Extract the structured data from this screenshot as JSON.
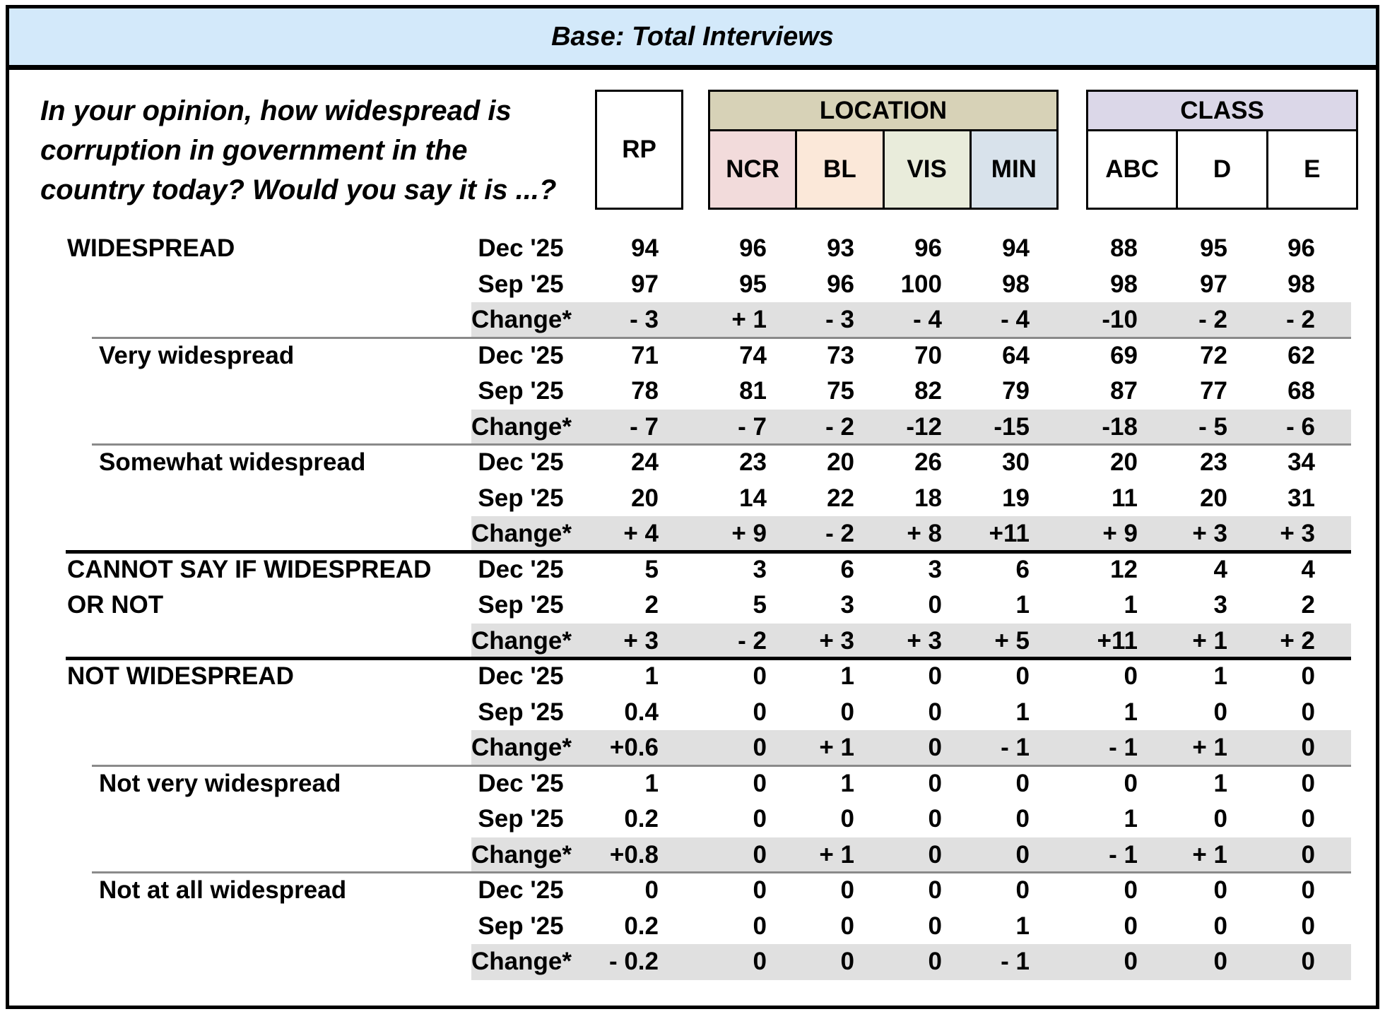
{
  "banner": {
    "title": "Base: Total Interviews"
  },
  "question": {
    "lines": [
      "In your opinion, how widespread is",
      "corruption in government in the",
      "country today? Would you say it is ...?"
    ]
  },
  "header": {
    "rp": "RP",
    "location": {
      "label": "LOCATION",
      "columns": [
        "NCR",
        "BL",
        "VIS",
        "MIN"
      ]
    },
    "class": {
      "label": "CLASS",
      "columns": [
        "ABC",
        "D",
        "E"
      ]
    }
  },
  "colors": {
    "banner_bg": "#d3e9fa",
    "location_bg": "#d7d2b7",
    "ncr_bg": "#f2dbdb",
    "bl_bg": "#fbe8d9",
    "vis_bg": "#e9ecdb",
    "min_bg": "#d8e2eb",
    "class_bg": "#dbd7e8",
    "change_row_bg": "#e0e0e0"
  },
  "table": {
    "column_keys": [
      "RP",
      "NCR",
      "BL",
      "VIS",
      "MIN",
      "ABC",
      "D",
      "E"
    ],
    "rows": [
      {
        "sep": "none",
        "label": "WIDESPREAD",
        "indent": false,
        "period": "Dec '25",
        "shaded": false,
        "values": [
          "94",
          "96",
          "93",
          "96",
          "94",
          "88",
          "95",
          "96"
        ]
      },
      {
        "sep": "none",
        "label": "",
        "indent": false,
        "period": "Sep '25",
        "shaded": false,
        "values": [
          "97",
          "95",
          "96",
          "100",
          "98",
          "98",
          "97",
          "98"
        ]
      },
      {
        "sep": "none",
        "label": "",
        "indent": false,
        "period": "Change*",
        "shaded": true,
        "values": [
          "- 3",
          "+ 1",
          "- 3",
          "- 4",
          "- 4",
          "-10",
          "- 2",
          "- 2"
        ]
      },
      {
        "sep": "thin",
        "label": "Very widespread",
        "indent": true,
        "period": "Dec '25",
        "shaded": false,
        "values": [
          "71",
          "74",
          "73",
          "70",
          "64",
          "69",
          "72",
          "62"
        ]
      },
      {
        "sep": "none",
        "label": "",
        "indent": true,
        "period": "Sep '25",
        "shaded": false,
        "values": [
          "78",
          "81",
          "75",
          "82",
          "79",
          "87",
          "77",
          "68"
        ]
      },
      {
        "sep": "none",
        "label": "",
        "indent": true,
        "period": "Change*",
        "shaded": true,
        "values": [
          "- 7",
          "- 7",
          "- 2",
          "-12",
          "-15",
          "-18",
          "- 5",
          "- 6"
        ]
      },
      {
        "sep": "thin",
        "label": "Somewhat widespread",
        "indent": true,
        "period": "Dec '25",
        "shaded": false,
        "values": [
          "24",
          "23",
          "20",
          "26",
          "30",
          "20",
          "23",
          "34"
        ]
      },
      {
        "sep": "none",
        "label": "",
        "indent": true,
        "period": "Sep '25",
        "shaded": false,
        "values": [
          "20",
          "14",
          "22",
          "18",
          "19",
          "11",
          "20",
          "31"
        ]
      },
      {
        "sep": "none",
        "label": "",
        "indent": true,
        "period": "Change*",
        "shaded": true,
        "values": [
          "+ 4",
          "+ 9",
          "- 2",
          "+ 8",
          "+11",
          "+ 9",
          "+ 3",
          "+ 3"
        ]
      },
      {
        "sep": "thick",
        "label": "CANNOT SAY IF WIDESPREAD",
        "indent": false,
        "period": "Dec '25",
        "shaded": false,
        "values": [
          "5",
          "3",
          "6",
          "3",
          "6",
          "12",
          "4",
          "4"
        ]
      },
      {
        "sep": "none",
        "label": "OR NOT",
        "indent": false,
        "period": "Sep '25",
        "shaded": false,
        "values": [
          "2",
          "5",
          "3",
          "0",
          "1",
          "1",
          "3",
          "2"
        ]
      },
      {
        "sep": "none",
        "label": "",
        "indent": false,
        "period": "Change*",
        "shaded": true,
        "values": [
          "+ 3",
          "- 2",
          "+ 3",
          "+ 3",
          "+ 5",
          "+11",
          "+ 1",
          "+ 2"
        ]
      },
      {
        "sep": "thick",
        "label": "NOT WIDESPREAD",
        "indent": false,
        "period": "Dec '25",
        "shaded": false,
        "values": [
          "1",
          "0",
          "1",
          "0",
          "0",
          "0",
          "1",
          "0"
        ]
      },
      {
        "sep": "none",
        "label": "",
        "indent": false,
        "period": "Sep '25",
        "shaded": false,
        "values": [
          "0.4",
          "0",
          "0",
          "0",
          "1",
          "1",
          "0",
          "0"
        ]
      },
      {
        "sep": "none",
        "label": "",
        "indent": false,
        "period": "Change*",
        "shaded": true,
        "values": [
          "+0.6",
          "0",
          "+ 1",
          "0",
          "- 1",
          "- 1",
          "+ 1",
          "0"
        ]
      },
      {
        "sep": "thin",
        "label": "Not very widespread",
        "indent": true,
        "period": "Dec '25",
        "shaded": false,
        "values": [
          "1",
          "0",
          "1",
          "0",
          "0",
          "0",
          "1",
          "0"
        ]
      },
      {
        "sep": "none",
        "label": "",
        "indent": true,
        "period": "Sep '25",
        "shaded": false,
        "values": [
          "0.2",
          "0",
          "0",
          "0",
          "0",
          "1",
          "0",
          "0"
        ]
      },
      {
        "sep": "none",
        "label": "",
        "indent": true,
        "period": "Change*",
        "shaded": true,
        "values": [
          "+0.8",
          "0",
          "+ 1",
          "0",
          "0",
          "- 1",
          "+ 1",
          "0"
        ]
      },
      {
        "sep": "thin",
        "label": "Not at all widespread",
        "indent": true,
        "period": "Dec '25",
        "shaded": false,
        "values": [
          "0",
          "0",
          "0",
          "0",
          "0",
          "0",
          "0",
          "0"
        ]
      },
      {
        "sep": "none",
        "label": "",
        "indent": true,
        "period": "Sep '25",
        "shaded": false,
        "values": [
          "0.2",
          "0",
          "0",
          "0",
          "1",
          "0",
          "0",
          "0"
        ]
      },
      {
        "sep": "none",
        "label": "",
        "indent": true,
        "period": "Change*",
        "shaded": true,
        "values": [
          "- 0.2",
          "0",
          "0",
          "0",
          "- 1",
          "0",
          "0",
          "0"
        ]
      }
    ]
  }
}
